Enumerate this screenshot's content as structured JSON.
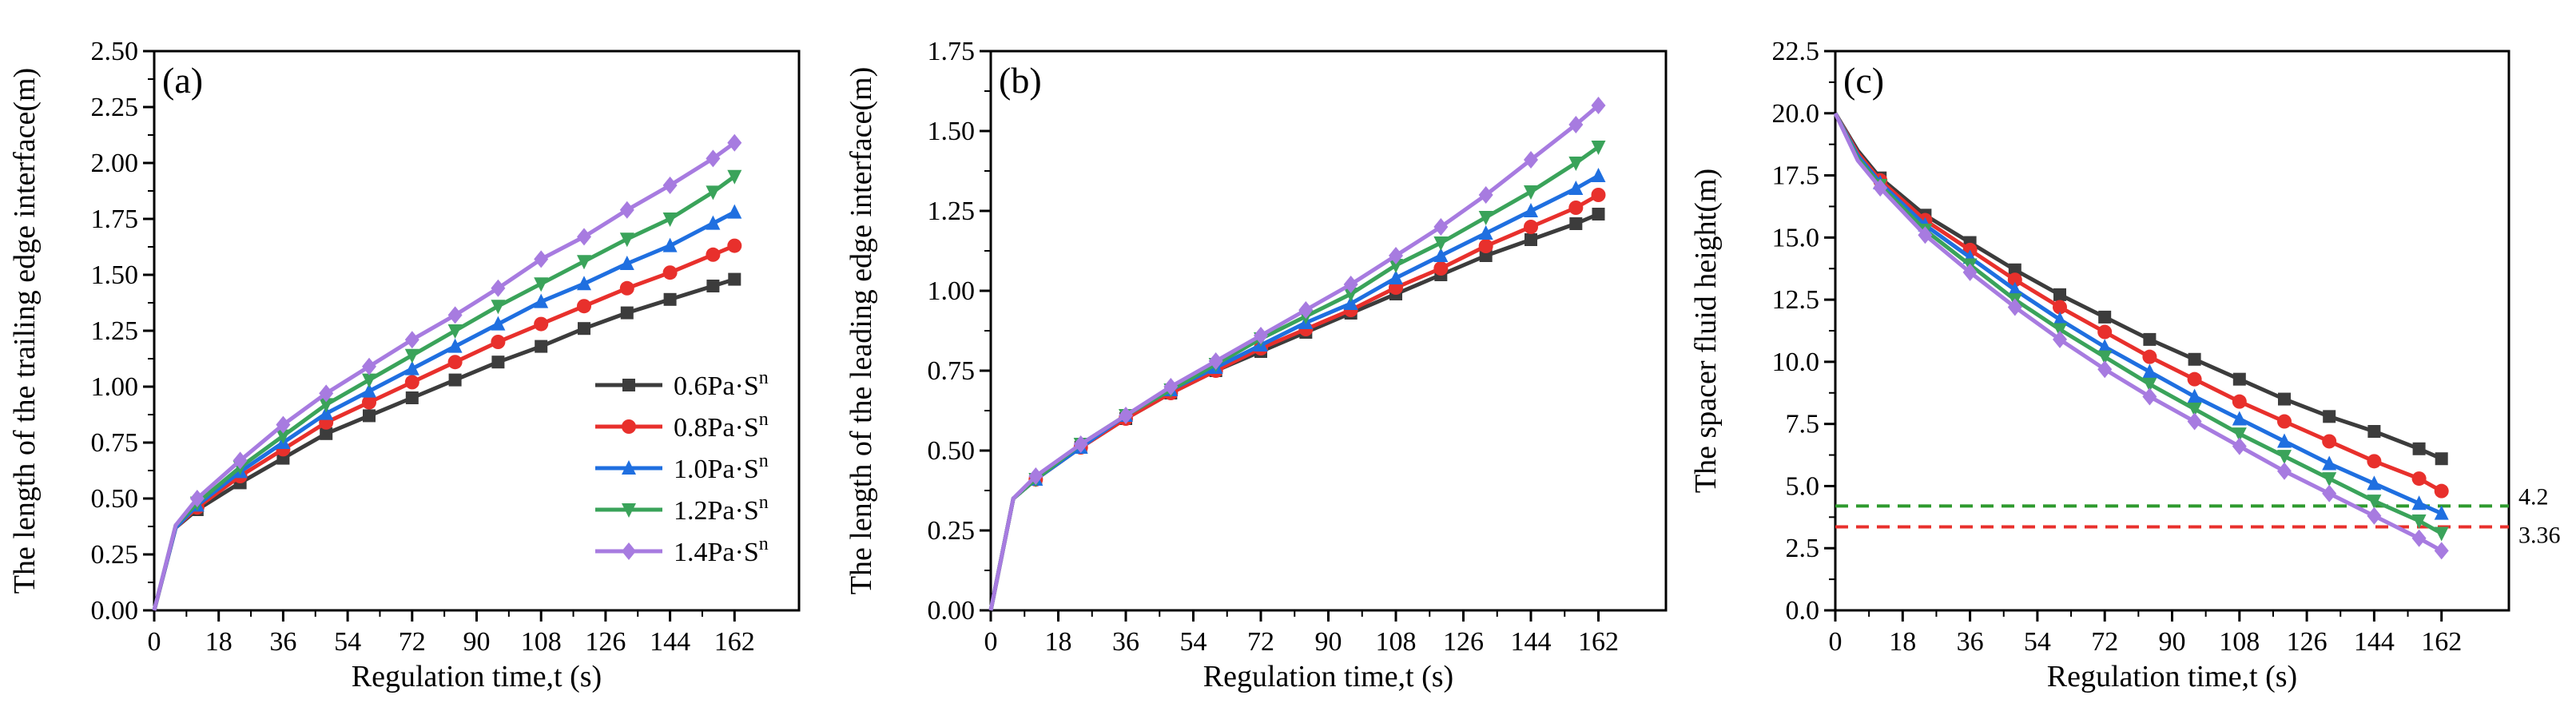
{
  "figure": {
    "series_styles": [
      {
        "name": "0.6Pa·S",
        "sup": "n",
        "color": "#3c3c3c",
        "marker": "square"
      },
      {
        "name": "0.8Pa·S",
        "sup": "n",
        "color": "#e8302c",
        "marker": "circle"
      },
      {
        "name": "1.0Pa·S",
        "sup": "n",
        "color": "#1f6fe0",
        "marker": "triangle-up"
      },
      {
        "name": "1.2Pa·S",
        "sup": "n",
        "color": "#3aa35a",
        "marker": "triangle-down"
      },
      {
        "name": "1.4Pa·S",
        "sup": "n",
        "color": "#a77be0",
        "marker": "diamond"
      }
    ]
  },
  "chart_data": [
    {
      "type": "line",
      "panel_label": "(a)",
      "xlabel": "Regulation time,t (s)",
      "ylabel": "The length of the trailing edge interface(m)",
      "xlim": [
        0,
        180
      ],
      "ylim": [
        0,
        2.5
      ],
      "xticks": [
        0,
        18,
        36,
        54,
        72,
        90,
        108,
        126,
        144,
        162
      ],
      "yticks": [
        0,
        0.25,
        0.5,
        0.75,
        1.0,
        1.25,
        1.5,
        1.75,
        2.0,
        2.25,
        2.5
      ],
      "ytick_labels": [
        "0.00",
        "0.25",
        "0.50",
        "0.75",
        "1.00",
        "1.25",
        "1.50",
        "1.75",
        "2.00",
        "2.25",
        "2.50"
      ],
      "legend_position": "center-right",
      "x": [
        0,
        6,
        12,
        24,
        36,
        48,
        60,
        72,
        84,
        96,
        108,
        120,
        132,
        144,
        156,
        162
      ],
      "series": [
        {
          "name": "0.6Pa·S",
          "values": [
            0,
            0.37,
            0.45,
            0.57,
            0.68,
            0.79,
            0.87,
            0.95,
            1.03,
            1.11,
            1.18,
            1.26,
            1.33,
            1.39,
            1.45,
            1.48
          ]
        },
        {
          "name": "0.8Pa·S",
          "values": [
            0,
            0.37,
            0.46,
            0.6,
            0.72,
            0.84,
            0.93,
            1.02,
            1.11,
            1.2,
            1.28,
            1.36,
            1.44,
            1.51,
            1.59,
            1.63
          ]
        },
        {
          "name": "1.0Pa·S",
          "values": [
            0,
            0.37,
            0.47,
            0.62,
            0.75,
            0.88,
            0.98,
            1.08,
            1.18,
            1.28,
            1.38,
            1.46,
            1.55,
            1.63,
            1.73,
            1.78
          ]
        },
        {
          "name": "1.2Pa·S",
          "values": [
            0,
            0.38,
            0.48,
            0.64,
            0.78,
            0.92,
            1.03,
            1.14,
            1.25,
            1.36,
            1.46,
            1.56,
            1.66,
            1.75,
            1.87,
            1.94
          ]
        },
        {
          "name": "1.4Pa·S",
          "values": [
            0,
            0.38,
            0.5,
            0.67,
            0.83,
            0.97,
            1.09,
            1.21,
            1.32,
            1.44,
            1.57,
            1.67,
            1.79,
            1.9,
            2.02,
            2.09
          ]
        }
      ]
    },
    {
      "type": "line",
      "panel_label": "(b)",
      "xlabel": "Regulation time,t (s)",
      "ylabel": "The length of the leading edge interface(m)",
      "xlim": [
        0,
        180
      ],
      "ylim": [
        0,
        1.75
      ],
      "xticks": [
        0,
        18,
        36,
        54,
        72,
        90,
        108,
        126,
        144,
        162
      ],
      "yticks": [
        0,
        0.25,
        0.5,
        0.75,
        1.0,
        1.25,
        1.5,
        1.75
      ],
      "ytick_labels": [
        "0.00",
        "0.25",
        "0.50",
        "0.75",
        "1.00",
        "1.25",
        "1.50",
        "1.75"
      ],
      "x": [
        0,
        6,
        12,
        24,
        36,
        48,
        60,
        72,
        84,
        96,
        108,
        120,
        132,
        144,
        156,
        162
      ],
      "series": [
        {
          "name": "0.6Pa·S",
          "values": [
            0,
            0.35,
            0.41,
            0.51,
            0.6,
            0.68,
            0.75,
            0.81,
            0.87,
            0.93,
            0.99,
            1.05,
            1.11,
            1.16,
            1.21,
            1.24
          ]
        },
        {
          "name": "0.8Pa·S",
          "values": [
            0,
            0.35,
            0.41,
            0.51,
            0.6,
            0.68,
            0.75,
            0.82,
            0.88,
            0.94,
            1.01,
            1.07,
            1.14,
            1.2,
            1.26,
            1.3
          ]
        },
        {
          "name": "1.0Pa·S",
          "values": [
            0,
            0.35,
            0.41,
            0.51,
            0.61,
            0.69,
            0.76,
            0.83,
            0.9,
            0.96,
            1.04,
            1.11,
            1.18,
            1.25,
            1.32,
            1.36
          ]
        },
        {
          "name": "1.2Pa·S",
          "values": [
            0,
            0.35,
            0.41,
            0.52,
            0.61,
            0.69,
            0.77,
            0.85,
            0.92,
            0.99,
            1.08,
            1.15,
            1.23,
            1.31,
            1.4,
            1.45
          ]
        },
        {
          "name": "1.4Pa·S",
          "values": [
            0,
            0.35,
            0.42,
            0.52,
            0.61,
            0.7,
            0.78,
            0.86,
            0.94,
            1.02,
            1.11,
            1.2,
            1.3,
            1.41,
            1.52,
            1.58
          ]
        }
      ]
    },
    {
      "type": "line",
      "panel_label": "(c)",
      "xlabel": "Regulation time,t (s)",
      "ylabel": "The spacer fluid height(m)",
      "xlim": [
        0,
        180
      ],
      "ylim": [
        0,
        22.5
      ],
      "xticks": [
        0,
        18,
        36,
        54,
        72,
        90,
        108,
        126,
        144,
        162
      ],
      "yticks": [
        0,
        2.5,
        5,
        7.5,
        10,
        12.5,
        15,
        17.5,
        20,
        22.5
      ],
      "ytick_labels": [
        "0.0",
        "2.5",
        "5.0",
        "7.5",
        "10.0",
        "12.5",
        "15.0",
        "17.5",
        "20.0",
        "22.5"
      ],
      "x": [
        0,
        6,
        12,
        24,
        36,
        48,
        60,
        72,
        84,
        96,
        108,
        120,
        132,
        144,
        156,
        162
      ],
      "series": [
        {
          "name": "0.6Pa·S",
          "values": [
            20,
            18.5,
            17.4,
            15.9,
            14.8,
            13.7,
            12.7,
            11.8,
            10.9,
            10.1,
            9.3,
            8.5,
            7.8,
            7.2,
            6.5,
            6.1
          ]
        },
        {
          "name": "0.8Pa·S",
          "values": [
            20,
            18.4,
            17.3,
            15.7,
            14.5,
            13.3,
            12.2,
            11.2,
            10.2,
            9.3,
            8.4,
            7.6,
            6.8,
            6.0,
            5.3,
            4.8
          ]
        },
        {
          "name": "1.0Pa·S",
          "values": [
            20,
            18.3,
            17.2,
            15.5,
            14.2,
            12.9,
            11.7,
            10.6,
            9.6,
            8.6,
            7.7,
            6.8,
            5.9,
            5.1,
            4.3,
            3.9
          ]
        },
        {
          "name": "1.2Pa·S",
          "values": [
            20,
            18.2,
            17.1,
            15.3,
            13.9,
            12.5,
            11.3,
            10.2,
            9.1,
            8.1,
            7.1,
            6.2,
            5.3,
            4.4,
            3.6,
            3.1
          ]
        },
        {
          "name": "1.4Pa·S",
          "values": [
            20,
            18.1,
            17.0,
            15.1,
            13.6,
            12.2,
            10.9,
            9.7,
            8.6,
            7.6,
            6.6,
            5.6,
            4.7,
            3.8,
            2.9,
            2.4
          ]
        }
      ],
      "reference_lines": [
        {
          "value": 4.2,
          "label": "4.2",
          "color": "#2e9a2e"
        },
        {
          "value": 3.36,
          "label": "3.36",
          "color": "#e8302c"
        }
      ]
    }
  ]
}
